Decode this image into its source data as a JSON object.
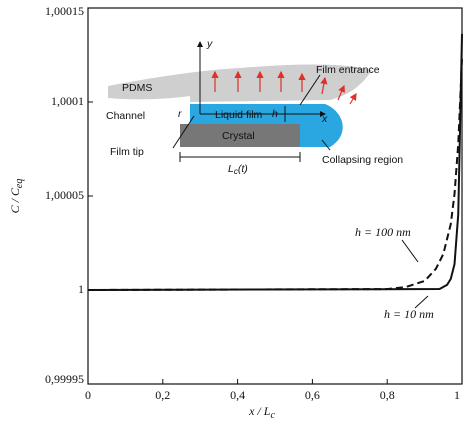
{
  "chart_data": {
    "type": "line",
    "xlabel": "x / L",
    "xlabel_sub": "c",
    "ylabel": "C / C",
    "ylabel_sub": "eq",
    "xlim": [
      0,
      1
    ],
    "xticks": [
      0,
      {
        "value": 0.2,
        "label": "0,2"
      },
      {
        "value": 0.4,
        "label": "0,4"
      },
      {
        "value": 0.6,
        "label": "0,6"
      },
      {
        "value": 0.8,
        "label": "0,8"
      },
      1
    ],
    "ylim": [
      0.99995,
      1.00015
    ],
    "yticks": [
      {
        "value": 0.99995,
        "label": "0,99995"
      },
      1,
      {
        "value": 1.00005,
        "label": "1,00005"
      },
      {
        "value": 1.0001,
        "label": "1,0001"
      },
      {
        "value": 1.00015,
        "label": "1,00015"
      }
    ],
    "grid": false,
    "series": [
      {
        "name": "h = 100 nm",
        "color": "#111111",
        "style": "dashed",
        "x": [
          0,
          0.8,
          0.85,
          0.9,
          0.93,
          0.95,
          0.97,
          0.98,
          0.99,
          1
        ],
        "values": [
          1,
          1.0000005,
          1.0000016,
          1.0000048,
          1.0000112,
          1.0000191,
          1.0000351,
          1.0000511,
          1.0000777,
          1.0001229
        ]
      },
      {
        "name": "h = 10 nm",
        "color": "#111111",
        "style": "solid",
        "x": [
          0,
          0.94,
          0.96,
          0.97,
          0.98,
          0.99,
          1
        ],
        "values": [
          1,
          1.0000005,
          1.0000027,
          1.0000059,
          1.0000138,
          1.0000404,
          1.0001362
        ]
      }
    ]
  },
  "inset": {
    "pdms": "PDMS",
    "channel": "Channel",
    "film_entrance": "Film entrance",
    "liquid_film": "Liquid film",
    "h": "h",
    "crystal": "Crystal",
    "film_tip": "Film tip",
    "collapsing_region": "Collapsing region",
    "length": "L",
    "length_sub": "c",
    "length_arg": "(t)",
    "y_axis": "y",
    "x_axis": "x",
    "r": "r"
  }
}
